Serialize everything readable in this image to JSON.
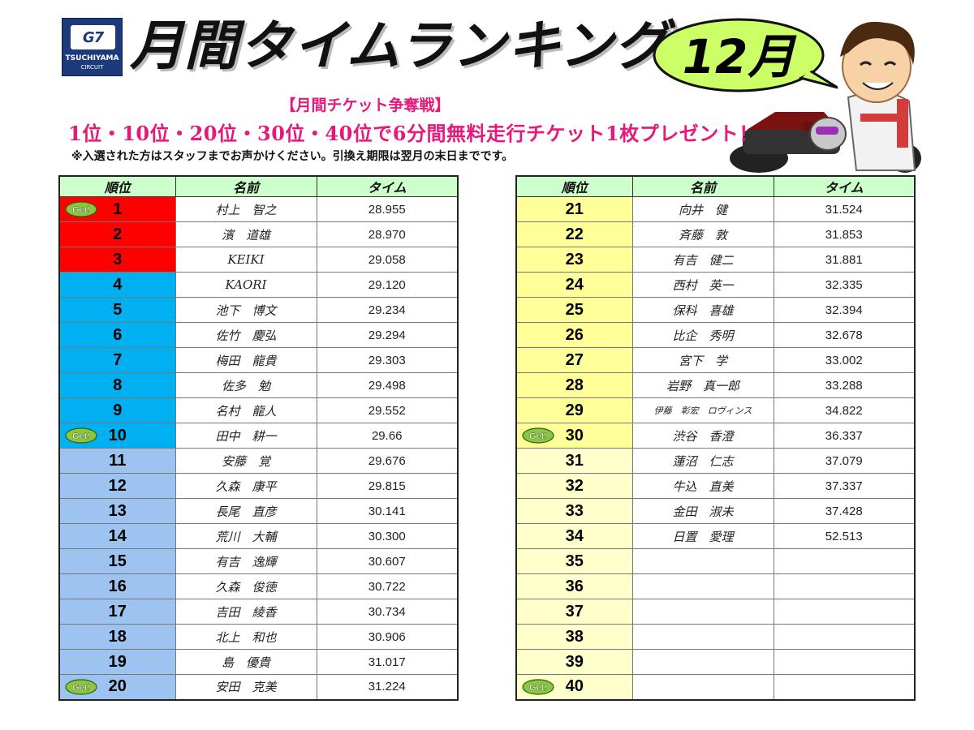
{
  "logo": {
    "mark": "G7",
    "line1": "TSUCHIYAMA",
    "line2": "CIRCUIT"
  },
  "title": "月間タイムランキング",
  "month": "12月",
  "campaign": "【月間チケット争奪戦】",
  "prize": "1位・10位・20位・30位・40位で6分間無料走行チケット1枚プレゼント！",
  "note": "※入選された方はスタッフまでお声かけください。引換え期限は翌月の末日までです。",
  "headers": {
    "rank": "順位",
    "name": "名前",
    "time": "タイム"
  },
  "badge": "Get!",
  "colors": {
    "top3": "#ff0000",
    "top10": "#00b0f0",
    "top20": "#9dc3f0",
    "top30": "#ffff99",
    "top40": "#ffffcc",
    "header": "#ccffcc",
    "prize_text": "#e6197a"
  },
  "rankings_left": [
    {
      "rank": "1",
      "name": "村上　智之",
      "time": "28.955",
      "badge": true,
      "tier": "red"
    },
    {
      "rank": "2",
      "name": "濱　道雄",
      "time": "28.970",
      "badge": false,
      "tier": "red"
    },
    {
      "rank": "3",
      "name": "KEIKI",
      "time": "29.058",
      "badge": false,
      "tier": "red"
    },
    {
      "rank": "4",
      "name": "KAORI",
      "time": "29.120",
      "badge": false,
      "tier": "cyan"
    },
    {
      "rank": "5",
      "name": "池下　博文",
      "time": "29.234",
      "badge": false,
      "tier": "cyan"
    },
    {
      "rank": "6",
      "name": "佐竹　慶弘",
      "time": "29.294",
      "badge": false,
      "tier": "cyan"
    },
    {
      "rank": "7",
      "name": "梅田　龍貴",
      "time": "29.303",
      "badge": false,
      "tier": "cyan"
    },
    {
      "rank": "8",
      "name": "佐多　勉",
      "time": "29.498",
      "badge": false,
      "tier": "cyan"
    },
    {
      "rank": "9",
      "name": "名村　龍人",
      "time": "29.552",
      "badge": false,
      "tier": "cyan"
    },
    {
      "rank": "10",
      "name": "田中　耕一",
      "time": "29.66",
      "badge": true,
      "tier": "cyan"
    },
    {
      "rank": "11",
      "name": "安藤　覚",
      "time": "29.676",
      "badge": false,
      "tier": "blue"
    },
    {
      "rank": "12",
      "name": "久森　康平",
      "time": "29.815",
      "badge": false,
      "tier": "blue"
    },
    {
      "rank": "13",
      "name": "長尾　直彦",
      "time": "30.141",
      "badge": false,
      "tier": "blue"
    },
    {
      "rank": "14",
      "name": "荒川　大輔",
      "time": "30.300",
      "badge": false,
      "tier": "blue"
    },
    {
      "rank": "15",
      "name": "有吉　逸輝",
      "time": "30.607",
      "badge": false,
      "tier": "blue"
    },
    {
      "rank": "16",
      "name": "久森　俊徳",
      "time": "30.722",
      "badge": false,
      "tier": "blue"
    },
    {
      "rank": "17",
      "name": "吉田　綾香",
      "time": "30.734",
      "badge": false,
      "tier": "blue"
    },
    {
      "rank": "18",
      "name": "北上　和也",
      "time": "30.906",
      "badge": false,
      "tier": "blue"
    },
    {
      "rank": "19",
      "name": "島　優貴",
      "time": "31.017",
      "badge": false,
      "tier": "blue"
    },
    {
      "rank": "20",
      "name": "安田　克美",
      "time": "31.224",
      "badge": true,
      "tier": "blue"
    }
  ],
  "rankings_right": [
    {
      "rank": "21",
      "name": "向井　健",
      "time": "31.524",
      "badge": false,
      "tier": "yellow"
    },
    {
      "rank": "22",
      "name": "斉藤　敦",
      "time": "31.853",
      "badge": false,
      "tier": "yellow"
    },
    {
      "rank": "23",
      "name": "有吉　健二",
      "time": "31.881",
      "badge": false,
      "tier": "yellow"
    },
    {
      "rank": "24",
      "name": "西村　英一",
      "time": "32.335",
      "badge": false,
      "tier": "yellow"
    },
    {
      "rank": "25",
      "name": "保科　喜雄",
      "time": "32.394",
      "badge": false,
      "tier": "yellow"
    },
    {
      "rank": "26",
      "name": "比企　秀明",
      "time": "32.678",
      "badge": false,
      "tier": "yellow"
    },
    {
      "rank": "27",
      "name": "宮下　学",
      "time": "33.002",
      "badge": false,
      "tier": "yellow"
    },
    {
      "rank": "28",
      "name": "岩野　真一郎",
      "time": "33.288",
      "badge": false,
      "tier": "yellow"
    },
    {
      "rank": "29",
      "name": "伊藤　彰宏　ロヴィンス",
      "time": "34.822",
      "badge": false,
      "tier": "yellow",
      "small": true
    },
    {
      "rank": "30",
      "name": "渋谷　香澄",
      "time": "36.337",
      "badge": true,
      "tier": "yellow"
    },
    {
      "rank": "31",
      "name": "蓮沼　仁志",
      "time": "37.079",
      "badge": false,
      "tier": "cream"
    },
    {
      "rank": "32",
      "name": "牛込　直美",
      "time": "37.337",
      "badge": false,
      "tier": "cream"
    },
    {
      "rank": "33",
      "name": "金田　淑未",
      "time": "37.428",
      "badge": false,
      "tier": "cream"
    },
    {
      "rank": "34",
      "name": "日置　愛理",
      "time": "52.513",
      "badge": false,
      "tier": "cream"
    },
    {
      "rank": "35",
      "name": "",
      "time": "",
      "badge": false,
      "tier": "cream"
    },
    {
      "rank": "36",
      "name": "",
      "time": "",
      "badge": false,
      "tier": "cream"
    },
    {
      "rank": "37",
      "name": "",
      "time": "",
      "badge": false,
      "tier": "cream"
    },
    {
      "rank": "38",
      "name": "",
      "time": "",
      "badge": false,
      "tier": "cream"
    },
    {
      "rank": "39",
      "name": "",
      "time": "",
      "badge": false,
      "tier": "cream"
    },
    {
      "rank": "40",
      "name": "",
      "time": "",
      "badge": true,
      "tier": "cream"
    }
  ]
}
